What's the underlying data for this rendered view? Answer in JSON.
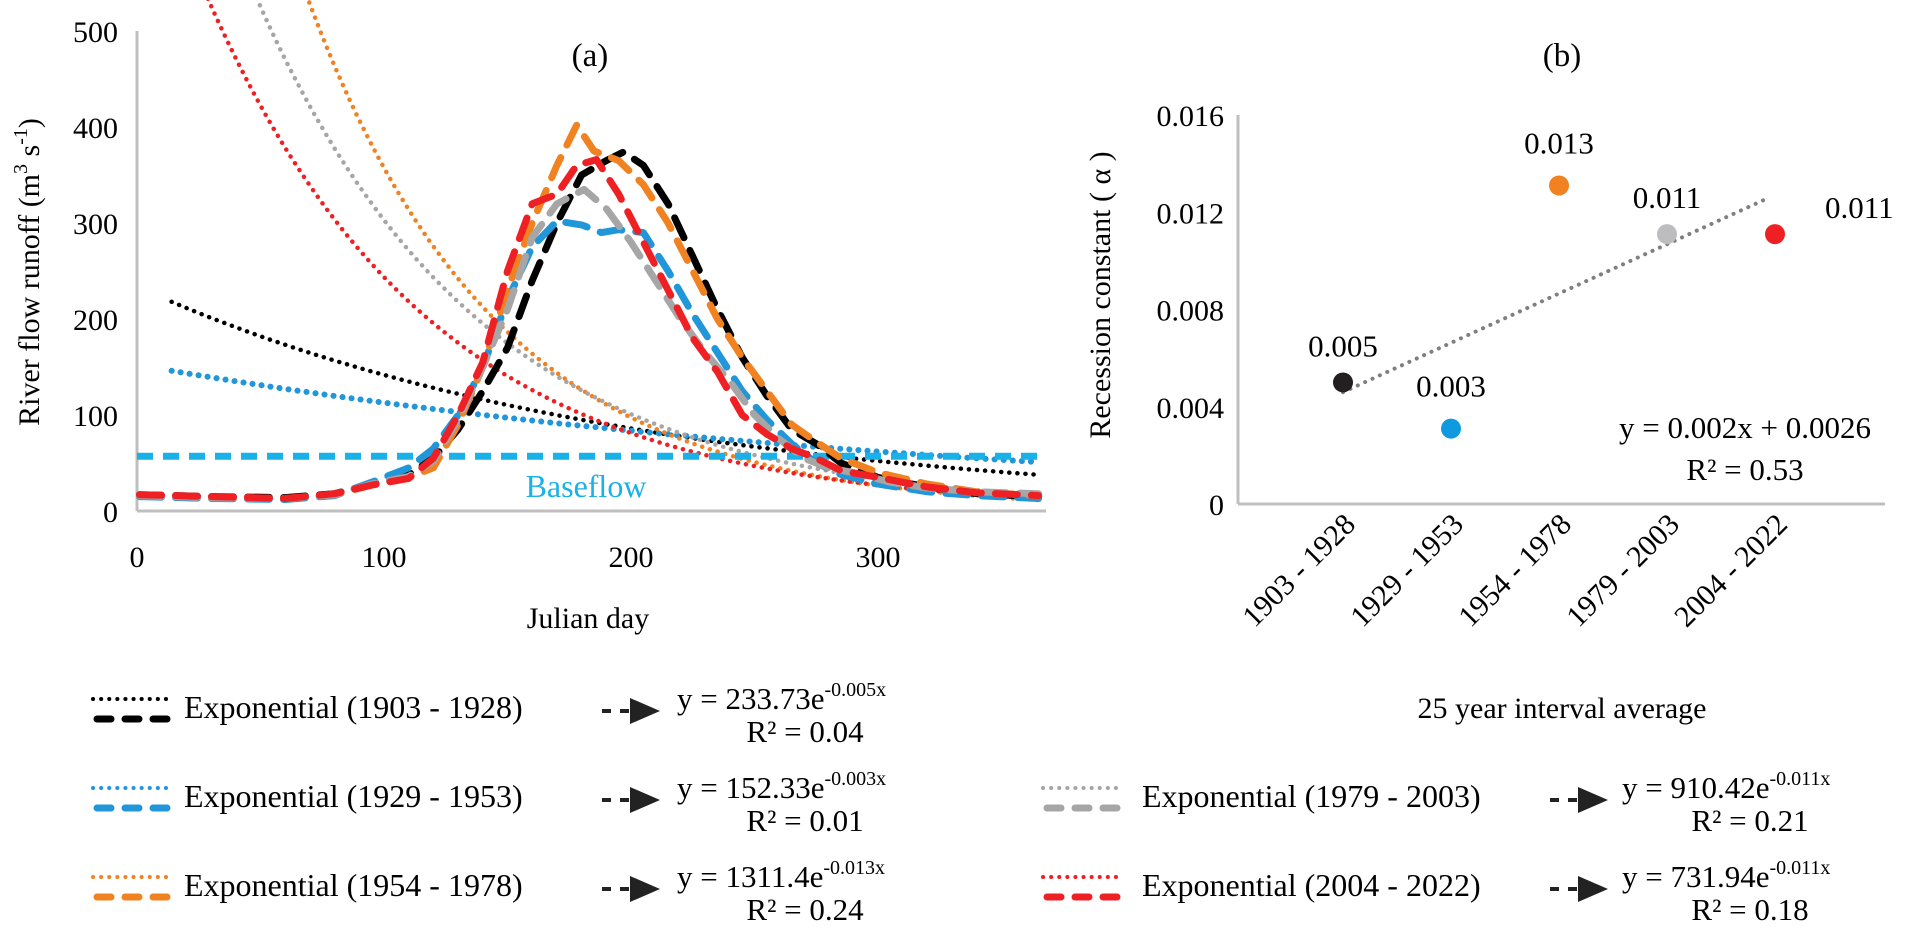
{
  "chart_data": [
    {
      "id": "a",
      "type": "line",
      "title": "(a)",
      "xlabel": "Julian day",
      "ylabel": "River flow runoff (m³ s⁻¹)",
      "ylabel_main": "River flow runoff (m",
      "ylabel_sup1": "3",
      "ylabel_mid": " s",
      "ylabel_sup2": "-1",
      "ylabel_end": ")",
      "xlim": [
        0,
        368
      ],
      "ylim": [
        0,
        500
      ],
      "xticks": [
        0,
        100,
        200,
        300
      ],
      "yticks": [
        0,
        100,
        200,
        300,
        400,
        500
      ],
      "grid": false,
      "baseflow": {
        "label": "Baseflow",
        "value": 57,
        "color": "#1ab0e8"
      },
      "series": [
        {
          "name": "1903 - 1928",
          "color": "#000000",
          "hydrograph": {
            "x": [
              1,
              30,
              60,
              80,
              95,
              110,
              120,
              130,
              140,
              150,
              160,
              170,
              180,
              190,
              197,
              205,
              215,
              225,
              235,
              245,
              255,
              265,
              275,
              285,
              300,
              320,
              340,
              365
            ],
            "y": [
              17,
              15,
              14,
              18,
              28,
              38,
              55,
              85,
              125,
              170,
              240,
              300,
              350,
              365,
              374,
              360,
              320,
              265,
              210,
              160,
              120,
              85,
              70,
              50,
              35,
              25,
              18,
              15
            ]
          },
          "fit": {
            "a": 233.73,
            "b": 0.005,
            "r2": 0.04,
            "equation_prefix": "y = 233.73e",
            "exponent": "-0.005x",
            "r2_label": "R² = 0.04"
          }
        },
        {
          "name": "1929 - 1953",
          "color": "#2196d9",
          "hydrograph": {
            "x": [
              1,
              30,
              60,
              80,
              95,
              110,
              120,
              130,
              140,
              150,
              160,
              170,
              180,
              188,
              195,
              205,
              215,
              225,
              235,
              245,
              255,
              265,
              275,
              285,
              300,
              320,
              340,
              365
            ],
            "y": [
              15,
              13,
              12,
              16,
              30,
              45,
              65,
              100,
              150,
              220,
              275,
              302,
              298,
              290,
              293,
              290,
              250,
              205,
              165,
              125,
              95,
              70,
              50,
              38,
              28,
              20,
              16,
              13
            ]
          },
          "fit": {
            "a": 152.33,
            "b": 0.003,
            "r2": 0.01,
            "equation_prefix": "y = 152.33e",
            "exponent": "-0.003x",
            "r2_label": "R² = 0.01"
          }
        },
        {
          "name": "1954 - 1978",
          "color": "#f08221",
          "hydrograph": {
            "x": [
              1,
              30,
              60,
              80,
              95,
              110,
              120,
              130,
              140,
              150,
              160,
              170,
              178,
              185,
              195,
              205,
              215,
              225,
              235,
              245,
              255,
              265,
              275,
              285,
              300,
              320,
              340,
              365
            ],
            "y": [
              16,
              14,
              13,
              17,
              27,
              35,
              45,
              90,
              150,
              230,
              300,
              360,
              402,
              375,
              365,
              340,
              300,
              250,
              200,
              160,
              125,
              90,
              72,
              55,
              40,
              28,
              20,
              16
            ]
          },
          "fit": {
            "a": 1311.4,
            "b": 0.013,
            "r2": 0.24,
            "equation_prefix": "y = 1311.4e",
            "exponent": "-0.013x",
            "r2_label": "R² = 0.24"
          }
        },
        {
          "name": "1979 - 2003",
          "color": "#a6a6a6",
          "hydrograph": {
            "x": [
              1,
              30,
              60,
              80,
              95,
              110,
              120,
              130,
              140,
              150,
              160,
              170,
              181,
              190,
              200,
              210,
              220,
              230,
              240,
              250,
              260,
              270,
              280,
              290,
              305,
              320,
              340,
              365
            ],
            "y": [
              16,
              14,
              13,
              17,
              28,
              36,
              52,
              95,
              150,
              210,
              285,
              320,
              335,
              315,
              280,
              240,
              200,
              165,
              135,
              100,
              75,
              55,
              45,
              40,
              30,
              24,
              20,
              18
            ]
          },
          "fit": {
            "a": 910.42,
            "b": 0.011,
            "r2": 0.21,
            "equation_prefix": "y = 910.42e",
            "exponent": "-0.011x",
            "r2_label": "R² = 0.21"
          }
        },
        {
          "name": "2004 - 2022",
          "color": "#ee2024",
          "hydrograph": {
            "x": [
              1,
              30,
              60,
              80,
              95,
              110,
              120,
              130,
              140,
              150,
              160,
              170,
              178,
              186,
              195,
              205,
              215,
              225,
              235,
              245,
              255,
              265,
              275,
              285,
              300,
              320,
              340,
              365
            ],
            "y": [
              17,
              15,
              13,
              18,
              27,
              34,
              55,
              100,
              155,
              250,
              320,
              330,
              360,
              366,
              330,
              280,
              230,
              180,
              145,
              100,
              80,
              65,
              55,
              42,
              35,
              25,
              19,
              16
            ]
          },
          "fit": {
            "a": 731.94,
            "b": 0.011,
            "r2": 0.18,
            "equation_prefix": "y = 731.94e",
            "exponent": "-0.011x",
            "r2_label": "R² = 0.18"
          }
        }
      ],
      "fit_range": [
        14,
        365
      ]
    },
    {
      "id": "b",
      "type": "scatter",
      "title": "(b)",
      "xlabel": "25 year interval average",
      "ylabel": "Recession constant ( α )",
      "categories": [
        "1903 - 1928",
        "1929 - 1953",
        "1954 - 1978",
        "1979 - 2003",
        "2004 - 2022"
      ],
      "values": [
        0.005,
        0.0031,
        0.0131,
        0.0111,
        0.0111
      ],
      "data_labels": [
        "0.005",
        "0.003",
        "0.013",
        "0.011",
        "0.011"
      ],
      "colors": [
        "#231f20",
        "#0f9ae0",
        "#f08221",
        "#bdbdbf",
        "#ee2024"
      ],
      "ylim": [
        0,
        0.016
      ],
      "yticks": [
        "0",
        "0.004",
        "0.008",
        "0.012",
        "0.016"
      ],
      "grid": false,
      "trendline": {
        "slope": 0.002,
        "intercept": 0.0026,
        "r2": 0.53,
        "color": "#7f7f7f",
        "equation": "y = 0.002x + 0.0026",
        "r2_label": "R² = 0.53"
      }
    }
  ],
  "legend": {
    "prefix": "Exponential",
    "arrow": "- -▶",
    "entries": [
      {
        "label": "Exponential (1903 - 1928)",
        "series": 0
      },
      {
        "label": "Exponential (1929 - 1953)",
        "series": 1
      },
      {
        "label": "Exponential (1954 - 1978)",
        "series": 2
      },
      {
        "label": "Exponential (1979 - 2003)",
        "series": 3
      },
      {
        "label": "Exponential (2004 - 2022)",
        "series": 4
      }
    ]
  }
}
